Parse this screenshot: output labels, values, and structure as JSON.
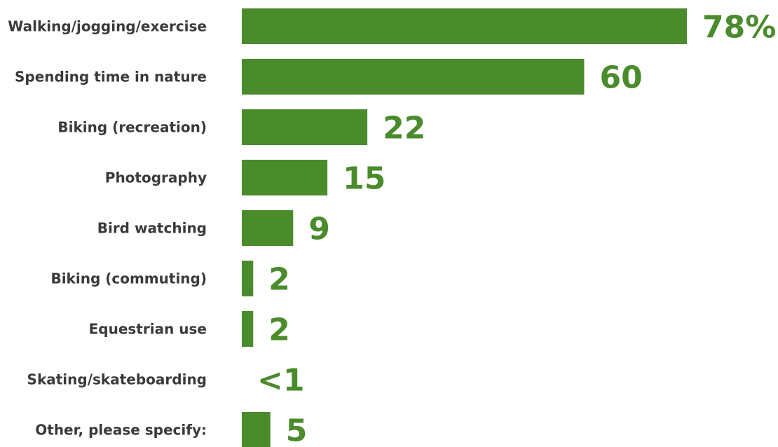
{
  "chart_data": {
    "type": "bar",
    "orientation": "horizontal",
    "title": "",
    "xlabel": "",
    "ylabel": "",
    "xlim": [
      0,
      78
    ],
    "grid": false,
    "legend": "none",
    "bar_color": "#4a8b2c",
    "label_color": "#4a8b2c",
    "categories": [
      "Walking/jogging/exercise",
      "Spending time in nature",
      "Biking (recreation)",
      "Photography",
      "Bird watching",
      "Biking (commuting)",
      "Equestrian use",
      "Skating/skateboarding",
      "Other, please specify:"
    ],
    "values": [
      78,
      60,
      22,
      15,
      9,
      2,
      2,
      0.5,
      5
    ],
    "value_labels": [
      "78%",
      "60",
      "22",
      "15",
      "9",
      "2",
      "2",
      "<1",
      "5"
    ]
  }
}
